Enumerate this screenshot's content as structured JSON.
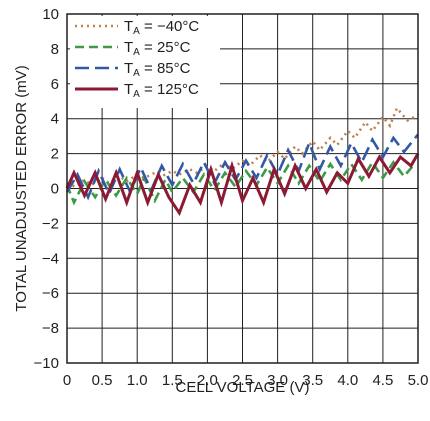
{
  "chart_data": {
    "type": "line",
    "xlabel": "CELL VOLTAGE (V)",
    "ylabel": "TOTAL UNADJUSTED ERROR (mV)",
    "xlim": [
      0,
      5
    ],
    "ylim": [
      -10,
      10
    ],
    "x_ticks": [
      "0",
      "0.5",
      "1.0",
      "1.5",
      "2.0",
      "2.5",
      "3.0",
      "3.5",
      "4.0",
      "4.5",
      "5.0"
    ],
    "y_ticks": [
      "10",
      "8",
      "6",
      "4",
      "2",
      "0",
      "−2",
      "−4",
      "−6",
      "−8",
      "−10"
    ],
    "grid": true,
    "legend_position": "top-left",
    "series": [
      {
        "name": "T_A = −40°C",
        "legend_main": "T",
        "legend_sub": "A",
        "legend_rest": " = −40°C",
        "color": "#c0814a",
        "dash": "2,4",
        "x": [
          0,
          0.12,
          0.25,
          0.35,
          0.5,
          0.6,
          0.75,
          0.85,
          1.0,
          1.1,
          1.25,
          1.35,
          1.5,
          1.6,
          1.75,
          1.85,
          2.0,
          2.1,
          2.25,
          2.35,
          2.5,
          2.6,
          2.75,
          2.85,
          3.0,
          3.1,
          3.25,
          3.35,
          3.5,
          3.6,
          3.75,
          3.85,
          4.0,
          4.1,
          4.25,
          4.35,
          4.5,
          4.6,
          4.7,
          4.85,
          5.0
        ],
        "y": [
          0.3,
          0.1,
          0.5,
          0.2,
          0.6,
          0.3,
          0.7,
          0.4,
          0.8,
          0.6,
          0.9,
          0.7,
          1.0,
          0.8,
          1.1,
          0.9,
          1.3,
          1.0,
          1.5,
          1.1,
          1.6,
          1.3,
          1.9,
          1.5,
          2.1,
          1.7,
          2.4,
          2.0,
          2.7,
          2.2,
          2.9,
          2.5,
          3.3,
          2.9,
          3.8,
          3.3,
          4.1,
          3.6,
          4.6,
          3.9,
          4.2
        ]
      },
      {
        "name": "T_A = 25°C",
        "legend_main": "T",
        "legend_sub": "A",
        "legend_rest": " = 25°C",
        "color": "#3d9a46",
        "dash": "9,5",
        "x": [
          0,
          0.1,
          0.25,
          0.4,
          0.55,
          0.7,
          0.85,
          1.0,
          1.1,
          1.25,
          1.4,
          1.5,
          1.65,
          1.8,
          1.95,
          2.1,
          2.25,
          2.4,
          2.55,
          2.7,
          2.85,
          3.0,
          3.15,
          3.3,
          3.45,
          3.6,
          3.75,
          3.9,
          4.05,
          4.2,
          4.35,
          4.5,
          4.65,
          4.8,
          4.95
        ],
        "y": [
          0.2,
          -0.8,
          0.4,
          -0.5,
          0.5,
          -0.4,
          0.6,
          -0.3,
          0.6,
          -0.7,
          0.5,
          -0.2,
          0.6,
          -0.2,
          0.8,
          -0.1,
          0.9,
          0.1,
          1.0,
          0.2,
          1.2,
          0.3,
          1.3,
          0.3,
          1.3,
          0.4,
          1.4,
          0.5,
          1.4,
          0.5,
          1.5,
          0.6,
          1.5,
          0.7,
          1.4
        ]
      },
      {
        "name": "T_A = 85°C",
        "legend_main": "T",
        "legend_sub": "A",
        "legend_rest": " = 85°C",
        "color": "#3359a6",
        "dash": "14,6",
        "x": [
          0,
          0.15,
          0.3,
          0.45,
          0.6,
          0.75,
          0.9,
          1.05,
          1.2,
          1.35,
          1.5,
          1.65,
          1.8,
          1.95,
          2.1,
          2.25,
          2.4,
          2.55,
          2.7,
          2.85,
          3.0,
          3.15,
          3.3,
          3.45,
          3.6,
          3.75,
          3.9,
          4.05,
          4.2,
          4.35,
          4.5,
          4.65,
          4.8,
          5.0
        ],
        "y": [
          -0.2,
          0.8,
          -0.5,
          1.0,
          -0.3,
          1.1,
          -0.2,
          1.2,
          -0.1,
          1.3,
          0.2,
          1.4,
          0.3,
          1.5,
          0.3,
          1.5,
          0.5,
          1.6,
          0.6,
          1.9,
          0.8,
          2.2,
          1.0,
          2.6,
          1.1,
          2.4,
          1.3,
          2.6,
          1.5,
          2.8,
          1.8,
          2.9,
          2.1,
          3.1
        ]
      },
      {
        "name": "T_A = 125°C",
        "legend_main": "T",
        "legend_sub": "A",
        "legend_rest": " = 125°C",
        "color": "#8b1a32",
        "dash": "",
        "x": [
          0,
          0.1,
          0.25,
          0.4,
          0.55,
          0.7,
          0.85,
          1.0,
          1.15,
          1.3,
          1.45,
          1.6,
          1.75,
          1.9,
          2.05,
          2.2,
          2.35,
          2.5,
          2.65,
          2.8,
          2.95,
          3.1,
          3.25,
          3.4,
          3.55,
          3.7,
          3.85,
          4.0,
          4.15,
          4.3,
          4.45,
          4.6,
          4.75,
          4.9,
          5.0
        ],
        "y": [
          0.0,
          0.9,
          -0.4,
          0.9,
          -0.6,
          0.9,
          -0.8,
          0.9,
          -0.8,
          0.8,
          -0.5,
          -1.4,
          0.2,
          -0.8,
          1.1,
          -0.8,
          1.3,
          -0.7,
          0.6,
          -0.8,
          1.1,
          -0.3,
          1.3,
          0.0,
          1.1,
          -0.2,
          0.9,
          0.3,
          1.7,
          0.7,
          1.8,
          0.9,
          1.8,
          1.3,
          2.0
        ]
      }
    ]
  }
}
